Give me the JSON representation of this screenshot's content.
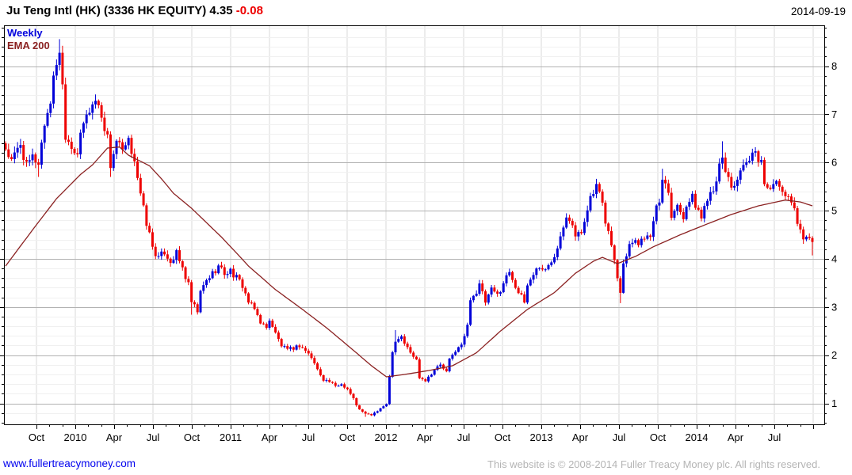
{
  "header": {
    "title_text": "Ju Teng Intl (HK) (3336 HK EQUITY)",
    "price": "4.35",
    "change": "-0.08",
    "date": "2014-09-19"
  },
  "legend": {
    "series_label": "Weekly",
    "overlay_label": "EMA 200"
  },
  "footer": {
    "link": "www.fullertreacymoney.com",
    "copyright": "This website is © 2008-2014 Fuller Treacy Money plc. All rights reserved."
  },
  "colors": {
    "up": "#0000d8",
    "down": "#ee0000",
    "ema": "#8b2222",
    "grid_minor": "#f0f0f0",
    "grid_major": "#b2b2b2",
    "grid_vertical": "#d9d9d9",
    "axis": "#000000",
    "label": "#000000"
  },
  "chart_data": {
    "type": "candlestick",
    "timeframe": "weekly",
    "instrument": "Ju Teng Intl (HK)",
    "ticker": "3336 HK EQUITY",
    "last_price": 4.35,
    "change": -0.08,
    "as_of": "2014-09-19",
    "overlay": "EMA 200",
    "y_axis": {
      "labels": [
        "1",
        "2",
        "3",
        "4",
        "5",
        "6",
        "7",
        "8"
      ],
      "minor_step": 0.2,
      "position": "right"
    },
    "x_axis": {
      "labels": [
        "Oct",
        "2010",
        "Apr",
        "Jul",
        "Oct",
        "2011",
        "Apr",
        "Jul",
        "Oct",
        "2012",
        "Apr",
        "Jul",
        "Oct",
        "2013",
        "Apr",
        "Jul",
        "Oct",
        "2014",
        "Apr",
        "Jul"
      ],
      "interval": "quarterly"
    },
    "weeks_total": 270,
    "close_keypoints": [
      [
        0,
        6.3
      ],
      [
        2,
        6.0
      ],
      [
        5,
        6.4
      ],
      [
        7,
        5.9
      ],
      [
        9,
        6.1
      ],
      [
        11,
        6.0
      ],
      [
        13,
        6.8
      ],
      [
        15,
        7.3
      ],
      [
        17,
        8.1
      ],
      [
        18,
        8.35
      ],
      [
        19,
        7.6
      ],
      [
        20,
        6.6
      ],
      [
        22,
        6.35
      ],
      [
        24,
        6.2
      ],
      [
        26,
        6.8
      ],
      [
        28,
        7.1
      ],
      [
        30,
        7.3
      ],
      [
        32,
        7.0
      ],
      [
        34,
        6.5
      ],
      [
        35,
        5.95
      ],
      [
        37,
        6.45
      ],
      [
        39,
        6.2
      ],
      [
        41,
        6.4
      ],
      [
        43,
        6.1
      ],
      [
        45,
        5.3
      ],
      [
        47,
        4.75
      ],
      [
        49,
        4.25
      ],
      [
        51,
        4.0
      ],
      [
        53,
        4.15
      ],
      [
        55,
        3.95
      ],
      [
        57,
        4.1
      ],
      [
        59,
        3.8
      ],
      [
        61,
        3.45
      ],
      [
        62,
        3.1
      ],
      [
        64,
        2.9
      ],
      [
        65,
        3.3
      ],
      [
        67,
        3.55
      ],
      [
        69,
        3.7
      ],
      [
        71,
        3.85
      ],
      [
        73,
        3.7
      ],
      [
        75,
        3.75
      ],
      [
        77,
        3.6
      ],
      [
        79,
        3.45
      ],
      [
        81,
        3.1
      ],
      [
        83,
        2.95
      ],
      [
        85,
        2.7
      ],
      [
        87,
        2.55
      ],
      [
        88,
        2.75
      ],
      [
        90,
        2.45
      ],
      [
        92,
        2.2
      ],
      [
        94,
        2.1
      ],
      [
        96,
        2.15
      ],
      [
        98,
        2.2
      ],
      [
        100,
        2.1
      ],
      [
        102,
        1.95
      ],
      [
        104,
        1.7
      ],
      [
        106,
        1.5
      ],
      [
        108,
        1.45
      ],
      [
        110,
        1.35
      ],
      [
        112,
        1.4
      ],
      [
        114,
        1.3
      ],
      [
        116,
        1.1
      ],
      [
        117,
        0.95
      ],
      [
        119,
        0.82
      ],
      [
        120,
        0.78
      ],
      [
        122,
        0.76
      ],
      [
        123,
        0.8
      ],
      [
        125,
        0.88
      ],
      [
        127,
        1.0
      ],
      [
        128,
        1.55
      ],
      [
        129,
        2.1
      ],
      [
        130,
        2.3
      ],
      [
        132,
        2.4
      ],
      [
        133,
        2.25
      ],
      [
        135,
        2.05
      ],
      [
        137,
        1.9
      ],
      [
        138,
        1.55
      ],
      [
        140,
        1.48
      ],
      [
        141,
        1.55
      ],
      [
        143,
        1.7
      ],
      [
        145,
        1.8
      ],
      [
        147,
        1.65
      ],
      [
        148,
        1.9
      ],
      [
        150,
        2.1
      ],
      [
        152,
        2.2
      ],
      [
        154,
        2.6
      ],
      [
        155,
        3.2
      ],
      [
        157,
        3.3
      ],
      [
        158,
        3.45
      ],
      [
        160,
        3.1
      ],
      [
        162,
        3.35
      ],
      [
        164,
        3.25
      ],
      [
        166,
        3.5
      ],
      [
        168,
        3.75
      ],
      [
        169,
        3.6
      ],
      [
        171,
        3.3
      ],
      [
        173,
        3.1
      ],
      [
        174,
        3.45
      ],
      [
        176,
        3.7
      ],
      [
        178,
        3.85
      ],
      [
        180,
        3.75
      ],
      [
        182,
        3.95
      ],
      [
        183,
        4.1
      ],
      [
        185,
        4.5
      ],
      [
        187,
        4.95
      ],
      [
        189,
        4.75
      ],
      [
        190,
        4.45
      ],
      [
        192,
        4.55
      ],
      [
        194,
        5.1
      ],
      [
        196,
        5.35
      ],
      [
        197,
        5.5
      ],
      [
        199,
        5.1
      ],
      [
        200,
        4.8
      ],
      [
        202,
        4.3
      ],
      [
        204,
        3.6
      ],
      [
        205,
        3.35
      ],
      [
        206,
        3.95
      ],
      [
        208,
        4.3
      ],
      [
        210,
        4.45
      ],
      [
        211,
        4.3
      ],
      [
        213,
        4.5
      ],
      [
        215,
        4.4
      ],
      [
        216,
        4.85
      ],
      [
        218,
        5.2
      ],
      [
        219,
        5.7
      ],
      [
        221,
        5.45
      ],
      [
        222,
        4.95
      ],
      [
        224,
        5.1
      ],
      [
        226,
        4.9
      ],
      [
        227,
        5.15
      ],
      [
        229,
        5.25
      ],
      [
        231,
        5.0
      ],
      [
        232,
        4.85
      ],
      [
        234,
        5.3
      ],
      [
        236,
        5.5
      ],
      [
        237,
        5.7
      ],
      [
        239,
        6.05
      ],
      [
        240,
        5.85
      ],
      [
        242,
        5.5
      ],
      [
        244,
        5.65
      ],
      [
        245,
        5.75
      ],
      [
        247,
        5.95
      ],
      [
        249,
        6.1
      ],
      [
        250,
        6.15
      ],
      [
        252,
        6.05
      ],
      [
        253,
        5.5
      ],
      [
        255,
        5.55
      ],
      [
        256,
        5.6
      ],
      [
        258,
        5.45
      ],
      [
        260,
        5.35
      ],
      [
        261,
        5.2
      ],
      [
        263,
        5.15
      ],
      [
        264,
        4.75
      ],
      [
        266,
        4.45
      ],
      [
        267,
        4.4
      ],
      [
        269,
        4.35
      ]
    ],
    "ema_keypoints": [
      [
        0,
        3.85
      ],
      [
        9,
        4.6
      ],
      [
        17,
        5.25
      ],
      [
        25,
        5.75
      ],
      [
        29,
        5.95
      ],
      [
        34,
        6.3
      ],
      [
        38,
        6.32
      ],
      [
        41,
        6.15
      ],
      [
        48,
        5.93
      ],
      [
        52,
        5.66
      ],
      [
        56,
        5.36
      ],
      [
        62,
        5.05
      ],
      [
        67,
        4.75
      ],
      [
        72,
        4.45
      ],
      [
        77,
        4.12
      ],
      [
        81,
        3.85
      ],
      [
        90,
        3.36
      ],
      [
        99,
        2.95
      ],
      [
        107,
        2.57
      ],
      [
        116,
        2.1
      ],
      [
        122,
        1.78
      ],
      [
        127,
        1.55
      ],
      [
        133,
        1.6
      ],
      [
        141,
        1.68
      ],
      [
        149,
        1.78
      ],
      [
        157,
        2.05
      ],
      [
        165,
        2.5
      ],
      [
        174,
        2.95
      ],
      [
        183,
        3.3
      ],
      [
        190,
        3.7
      ],
      [
        196,
        3.95
      ],
      [
        199,
        4.03
      ],
      [
        204,
        3.9
      ],
      [
        210,
        4.05
      ],
      [
        216,
        4.25
      ],
      [
        225,
        4.5
      ],
      [
        233,
        4.7
      ],
      [
        242,
        4.92
      ],
      [
        251,
        5.1
      ],
      [
        260,
        5.22
      ],
      [
        265,
        5.18
      ],
      [
        269,
        5.1
      ]
    ],
    "wick_highs": [
      [
        18,
        8.56
      ],
      [
        130,
        2.52
      ],
      [
        197,
        5.66
      ],
      [
        219,
        5.87
      ],
      [
        239,
        6.44
      ]
    ],
    "wick_lows": [
      [
        11,
        5.7
      ],
      [
        35,
        5.7
      ],
      [
        62,
        2.84
      ],
      [
        120,
        0.72
      ],
      [
        205,
        3.08
      ]
    ]
  }
}
